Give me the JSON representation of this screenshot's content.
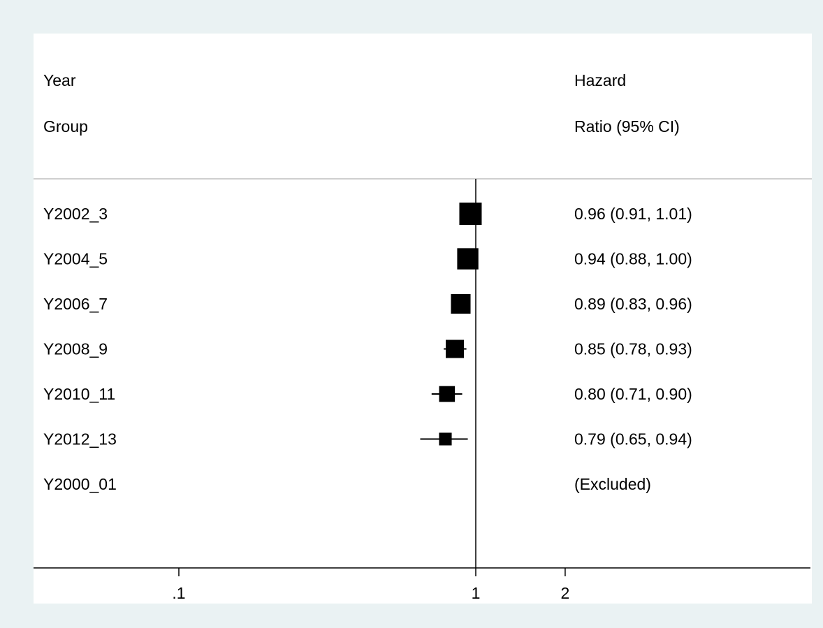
{
  "chart_data": {
    "type": "forest",
    "x_scale": "log",
    "reference_line": 1,
    "xticks": [
      {
        "value": 0.1,
        "label": ".1"
      },
      {
        "value": 1,
        "label": "1"
      },
      {
        "value": 2,
        "label": "2"
      }
    ],
    "column_headers": {
      "left": [
        "Year",
        "Group"
      ],
      "right": [
        "Hazard",
        "Ratio (95% CI)"
      ]
    },
    "rows": [
      {
        "label": "Y2002_3",
        "hr": 0.96,
        "lo": 0.91,
        "hi": 1.01,
        "text": "0.96 (0.91, 1.01)",
        "weight": 1.0
      },
      {
        "label": "Y2004_5",
        "hr": 0.94,
        "lo": 0.88,
        "hi": 1.0,
        "text": "0.94 (0.88, 1.00)",
        "weight": 0.9
      },
      {
        "label": "Y2006_7",
        "hr": 0.89,
        "lo": 0.83,
        "hi": 0.96,
        "text": "0.89 (0.83, 0.96)",
        "weight": 0.77
      },
      {
        "label": "Y2008_9",
        "hr": 0.85,
        "lo": 0.78,
        "hi": 0.93,
        "text": "0.85 (0.78, 0.93)",
        "weight": 0.66
      },
      {
        "label": "Y2010_11",
        "hr": 0.8,
        "lo": 0.71,
        "hi": 0.9,
        "text": "0.80 (0.71, 0.90)",
        "weight": 0.5
      },
      {
        "label": "Y2012_13",
        "hr": 0.79,
        "lo": 0.65,
        "hi": 0.94,
        "text": "0.79 (0.65, 0.94)",
        "weight": 0.32
      },
      {
        "label": "Y2000_01",
        "hr": null,
        "lo": null,
        "hi": null,
        "text": "(Excluded)",
        "weight": 0
      }
    ],
    "colors": {
      "background": "#eaf2f3",
      "plot": "#ffffff",
      "marker": "#000000",
      "separator": "#bfbfbf"
    }
  }
}
